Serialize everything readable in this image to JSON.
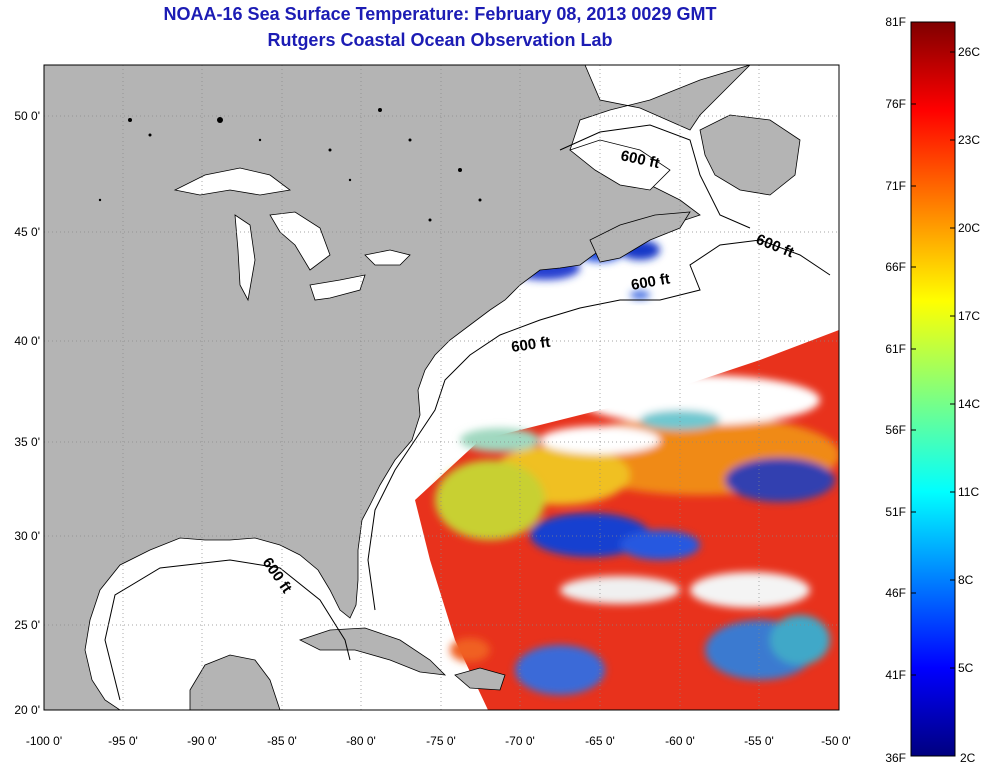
{
  "title": {
    "line1": "NOAA-16 Sea Surface Temperature:  February 08, 2013 0029 GMT",
    "line2": "Rutgers Coastal Ocean Observation Lab"
  },
  "axes": {
    "lon_ticks": [
      "-100 0'",
      "-95 0'",
      "-90 0'",
      "-85 0'",
      "-80 0'",
      "-75 0'",
      "-70 0'",
      "-65 0'",
      "-60 0'",
      "-55 0'",
      "-50 0'"
    ],
    "lat_ticks": [
      "50 0'",
      "45 0'",
      "40 0'",
      "35 0'",
      "30 0'",
      "25 0'",
      "20 0'"
    ]
  },
  "contour_labels": [
    "600 ft",
    "600 ft",
    "600 ft",
    "600 ft",
    "600 ft"
  ],
  "colorbar": {
    "fahrenheit": [
      "81F",
      "76F",
      "71F",
      "66F",
      "61F",
      "56F",
      "51F",
      "46F",
      "41F",
      "36F"
    ],
    "celsius": [
      "26C",
      "23C",
      "20C",
      "17C",
      "14C",
      "11C",
      "8C",
      "5C",
      "2C"
    ]
  },
  "colors": {
    "land": "#b4b4b4",
    "title": "#1c1cb4",
    "warm": "#e02010",
    "cold": "#1030c8"
  }
}
